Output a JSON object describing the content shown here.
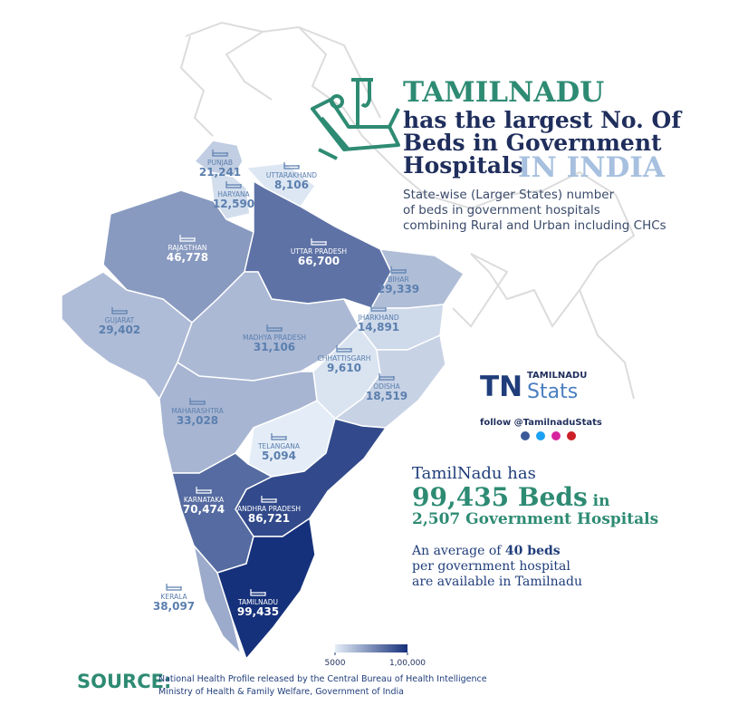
{
  "chart_data": {
    "type": "choropleth",
    "title_lines": [
      "TAMILNADU",
      "has the largest No. Of",
      "Beds in Government",
      "Hospitals",
      "IN INDIA"
    ],
    "subtitle_lines": [
      "State-wise (Larger States) number",
      "of beds in government hospitals",
      "combining Rural and Urban including CHCs"
    ],
    "categories": [
      "PUNJAB",
      "HARYANA",
      "UTTARAKHAND",
      "RAJASTHAN",
      "UTTAR PRADESH",
      "BIHAR",
      "GUJARAT",
      "MADHYA PRADESH",
      "JHARKHAND",
      "CHHATTISGARH",
      "ODISHA",
      "MAHARASHTRA",
      "TELANGANA",
      "ANDHRA PRADESH",
      "KARNATAKA",
      "KERALA",
      "TAMILNADU"
    ],
    "values": [
      21241,
      12590,
      8106,
      46778,
      66700,
      29339,
      29402,
      31106,
      14891,
      9610,
      18519,
      33028,
      5094,
      86721,
      70474,
      38097,
      99435
    ],
    "value_labels": [
      "21,241",
      "12,590",
      "8,106",
      "46,778",
      "66,700",
      "29,339",
      "29,402",
      "31,106",
      "14,891",
      "9,610",
      "18,519",
      "33,028",
      "5,094",
      "86,721",
      "70,474",
      "38,097",
      "99,435"
    ],
    "colors": [
      "#e4edf7",
      "#15307a"
    ],
    "clim": [
      5000,
      100000
    ],
    "cticks": [
      5000,
      {
        "value": 100000,
        "label": "1,00,000"
      }
    ]
  },
  "brand": {
    "mark": "TN",
    "name": "TAMILNADU",
    "sub": "Stats",
    "follow": "follow @TamilnaduStats"
  },
  "summary": {
    "line1": "TamilNadu has",
    "beds": "99,435 Beds",
    "in": " in",
    "hospitals": "2,507 Government Hospitals",
    "avg_pre": "An average of ",
    "avg_bold": "40 beds",
    "avg_line2": "per government hospital",
    "avg_line3": "are available in Tamilnadu"
  },
  "source": {
    "label": "SOURCE:",
    "line1": "National Health Profile released by the Central Bureau of Health Intelligence",
    "line2": "Ministry of Health & Family Welfare, Government of India"
  }
}
